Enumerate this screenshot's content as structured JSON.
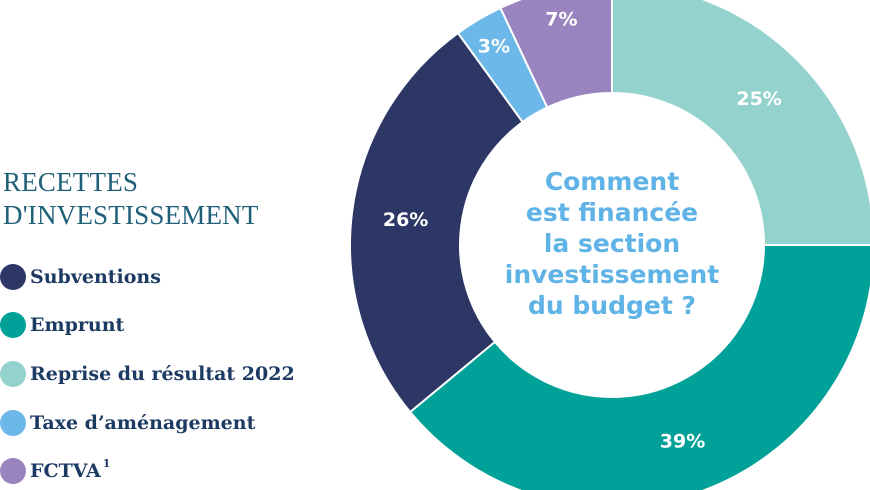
{
  "legend": {
    "title": "RECETTES\nD'INVESTISSEMENT",
    "footnote_mark": "1"
  },
  "chart_data": {
    "type": "pie",
    "variant": "donut",
    "categories": [
      "Subventions",
      "Emprunt",
      "Reprise du résultat 2022",
      "Taxe d’aménagement",
      "FCTVA"
    ],
    "values": [
      26,
      39,
      25,
      3,
      7
    ],
    "value_labels": [
      "26%",
      "39%",
      "25%",
      "3%",
      "7%"
    ],
    "colors": [
      "#2d3766",
      "#00a199",
      "#94d2cd",
      "#6cb8e8",
      "#9a84c0"
    ],
    "center_text": [
      "Comment",
      "est financée",
      "la section",
      "investissement",
      "du budget ?"
    ],
    "legend_placement": "left"
  }
}
